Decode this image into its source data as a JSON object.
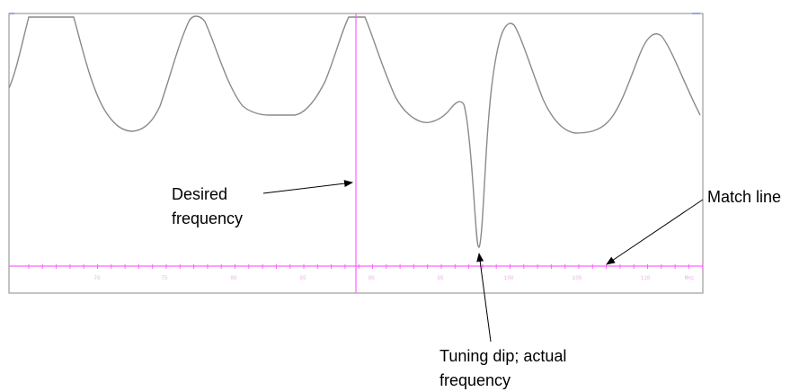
{
  "colors": {
    "trace": "#8a8a8a",
    "marker": "#ff60ff",
    "axis": "#ff60ff",
    "border": "#8a8a8a",
    "tick_label": "#f0b0f0",
    "annotation": "#000000"
  },
  "plot": {
    "axis_ticks": [
      "70",
      "75",
      "80",
      "85",
      "90",
      "95",
      "100",
      "105",
      "110"
    ],
    "unit_label": "MHz"
  },
  "annotations": {
    "desired": [
      "Desired",
      "frequency"
    ],
    "match": [
      "Match line"
    ],
    "dip": [
      "Tuning dip; actual",
      "frequency"
    ]
  }
}
